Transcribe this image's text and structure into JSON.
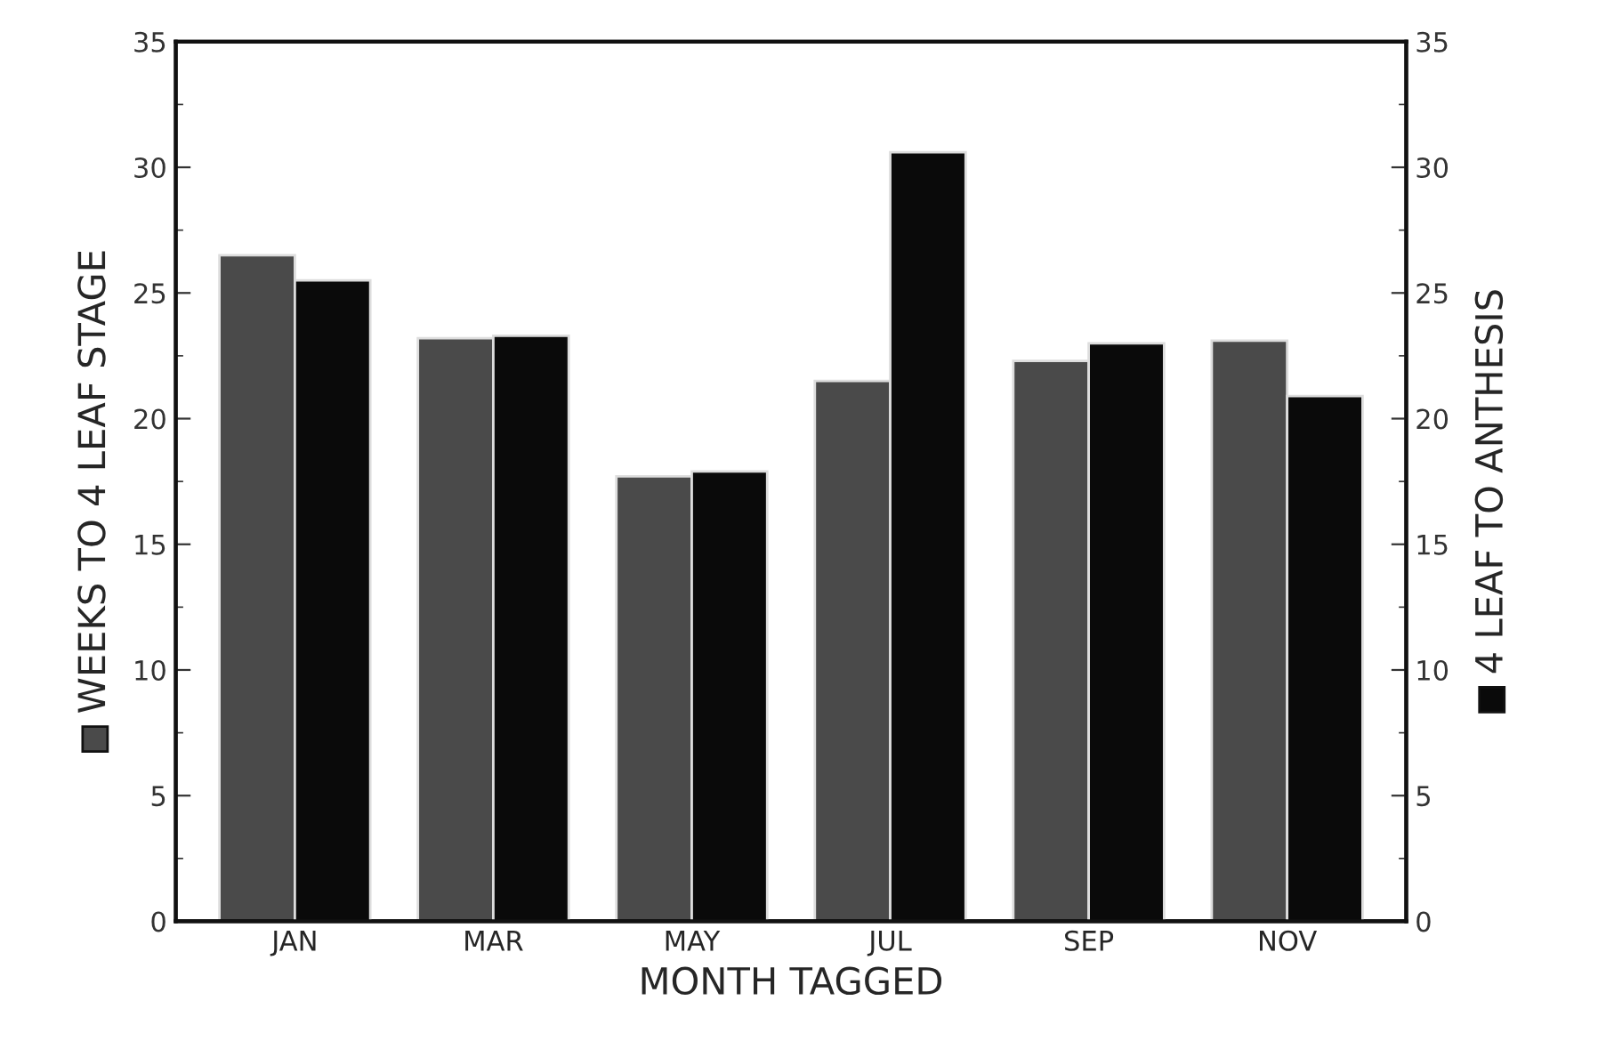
{
  "chart_data": {
    "type": "bar",
    "xlabel": "MONTH TAGGED",
    "ylabel": "WEEKS TO 4 LEAF STAGE",
    "y2label": "4 LEAF TO ANTHESIS",
    "categories": [
      "JAN",
      "MAR",
      "MAY",
      "JUL",
      "SEP",
      "NOV"
    ],
    "series": [
      {
        "color": "#4a4a4a",
        "values": [
          26.5,
          23.2,
          17.7,
          21.5,
          22.3,
          23.1
        ]
      },
      {
        "color": "#0a0a0a",
        "values": [
          25.5,
          23.3,
          17.9,
          30.6,
          23.0,
          20.9
        ],
        "axis": "y2"
      }
    ],
    "ylim": [
      0,
      35
    ],
    "yticks": [
      0,
      5,
      10,
      15,
      20,
      25,
      30,
      35
    ],
    "y2lim": [
      0,
      35
    ],
    "y2ticks": [
      0,
      5,
      10,
      15,
      20,
      25,
      30,
      35
    ],
    "grid": false,
    "legend": false
  }
}
